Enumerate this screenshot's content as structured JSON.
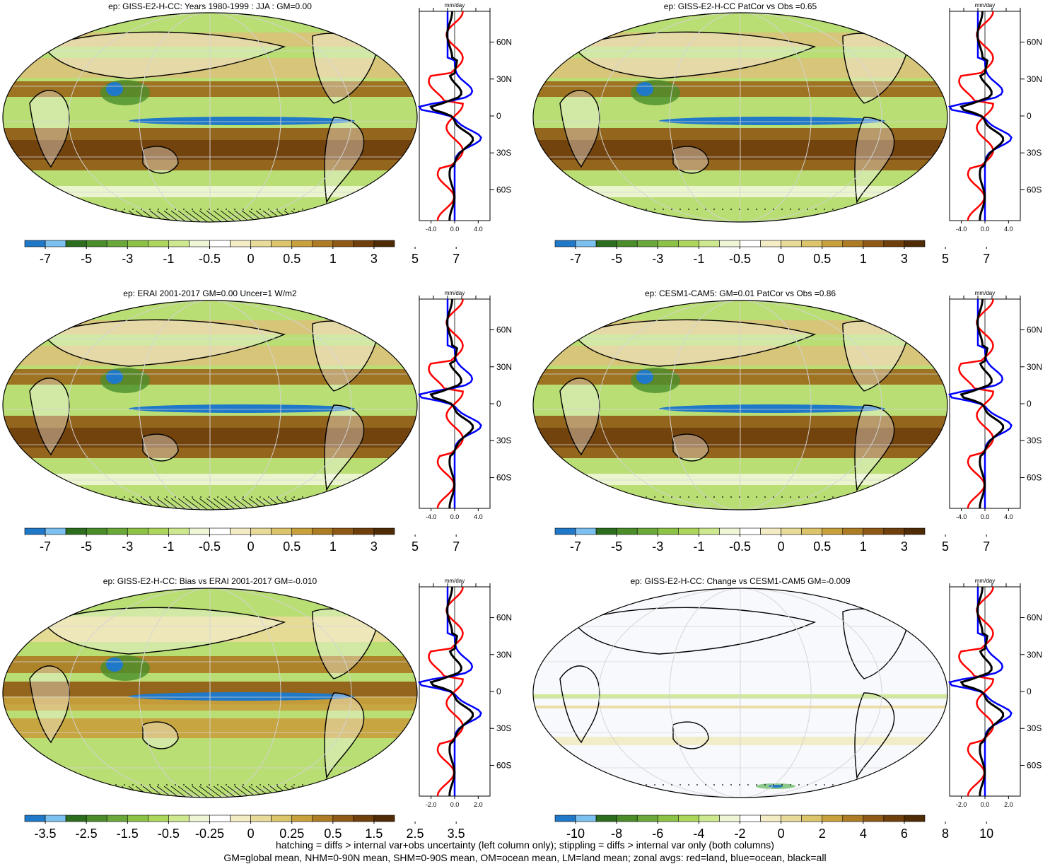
{
  "footer": {
    "line1": "hatching = diffs > internal var+obs uncertainty (left column only); stippling = diffs > internal var only (both columns)",
    "line2": "GM=global mean, NHM=0-90N mean, SHM=0-90S mean, OM=ocean mean, LM=land mean; zonal avgs: red=land, blue=ocean, black=all"
  },
  "zonal_unit": "mm/day",
  "lat_ticks": [
    "60N",
    "30N",
    "0",
    "30S",
    "60S"
  ],
  "colors": {
    "land": "#ff0000",
    "ocean": "#0000ff",
    "all": "#000000",
    "colorbar": [
      "#1f78c8",
      "#7cc0f0",
      "#2c6e1e",
      "#4a8d2a",
      "#6aa83a",
      "#8cc246",
      "#acd65c",
      "#cde88e",
      "#eef6d6",
      "#ffffff",
      "#f4ecc4",
      "#e8da98",
      "#dcc46a",
      "#c8a03c",
      "#ad7c24",
      "#8f5a16",
      "#70400c",
      "#502c06"
    ]
  },
  "chart_data": [
    {
      "type": "heatmap",
      "title": "ep: GISS-E2-H-CC: Years 1980-1999 : JJA : GM=0.00",
      "colorbar_labels": [
        "-7",
        "-5",
        "-3",
        "-1",
        "-0.5",
        "0",
        "0.5",
        "1",
        "3",
        "5",
        "7"
      ],
      "zonal": {
        "xticks": [
          "-4.0",
          "0.0",
          "4.0"
        ],
        "xlim": [
          -6,
          6
        ],
        "hatching": true
      }
    },
    {
      "type": "heatmap",
      "title": "ep: GISS-E2-H-CC PatCor vs Obs =0.65",
      "colorbar_labels": [
        "-7",
        "-5",
        "-3",
        "-1",
        "-0.5",
        "0",
        "0.5",
        "1",
        "3",
        "5",
        "7"
      ],
      "zonal": {
        "xticks": [
          "-4.0",
          "0.0",
          "4.0"
        ],
        "xlim": [
          -6,
          6
        ],
        "hatching": false
      }
    },
    {
      "type": "heatmap",
      "title": "ep: ERAI 2001-2017 GM=0.00 Uncer=1 W/m2",
      "colorbar_labels": [
        "-7",
        "-5",
        "-3",
        "-1",
        "-0.5",
        "0",
        "0.5",
        "1",
        "3",
        "5",
        "7"
      ],
      "zonal": {
        "xticks": [
          "-4.0",
          "0.0",
          "4.0"
        ],
        "xlim": [
          -6,
          6
        ],
        "hatching": true
      }
    },
    {
      "type": "heatmap",
      "title": "ep: CESM1-CAM5: GM=0.01 PatCor vs Obs =0.86",
      "colorbar_labels": [
        "-7",
        "-5",
        "-3",
        "-1",
        "-0.5",
        "0",
        "0.5",
        "1",
        "3",
        "5",
        "7"
      ],
      "zonal": {
        "xticks": [
          "-4.0",
          "0.0",
          "4.0"
        ],
        "xlim": [
          -6,
          6
        ],
        "hatching": false
      }
    },
    {
      "type": "heatmap",
      "title": "ep: GISS-E2-H-CC: Bias vs ERAI 2001-2017 GM=-0.010",
      "colorbar_labels": [
        "-3.5",
        "-2.5",
        "-1.5",
        "-0.5",
        "-0.25",
        "0",
        "0.25",
        "0.5",
        "1.5",
        "2.5",
        "3.5"
      ],
      "zonal": {
        "xticks": [
          "-2.0",
          "0.0",
          "2.0"
        ],
        "xlim": [
          -3,
          3
        ],
        "hatching": true
      }
    },
    {
      "type": "heatmap",
      "title": "ep: GISS-E2-H-CC: Change vs CESM1-CAM5 GM=-0.009",
      "colorbar_labels": [
        "-10",
        "-8",
        "-6",
        "-4",
        "-2",
        "0",
        "2",
        "4",
        "6",
        "8",
        "10"
      ],
      "zonal": {
        "xticks": [
          "-2.0",
          "0.0",
          "2.0"
        ],
        "xlim": [
          -3,
          3
        ],
        "hatching": false
      }
    }
  ]
}
